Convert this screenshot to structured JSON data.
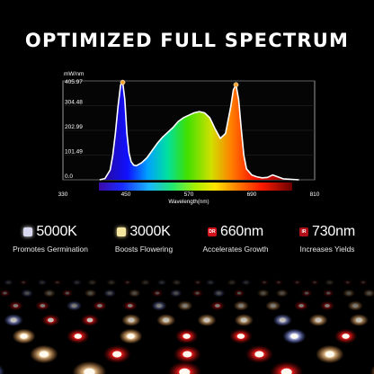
{
  "title": "OPTIMIZED FULL SPECTRUM",
  "chart_data": {
    "type": "line",
    "ylabel": "mW/nm",
    "xlabel": "Wavelength(nm)",
    "y_ticks": [
      "405.97",
      "304.48",
      "202.99",
      "101.49",
      "0.0"
    ],
    "x_ticks": [
      "330",
      "450",
      "570",
      "690",
      "810"
    ],
    "xlim": [
      330,
      810
    ],
    "ylim": [
      0,
      405.97
    ],
    "series": [
      {
        "x": [
          400,
          410,
          420,
          425,
          430,
          435,
          440,
          444,
          448,
          452,
          456,
          460,
          465,
          470,
          480,
          490,
          500,
          510,
          520,
          530,
          540,
          550,
          560,
          570,
          580,
          590,
          600,
          610,
          620,
          630,
          640,
          650,
          655,
          660,
          665,
          670,
          675,
          680,
          690,
          700,
          710,
          720,
          730,
          740,
          750,
          780
        ],
        "y": [
          0,
          5,
          40,
          100,
          190,
          300,
          390,
          400,
          330,
          190,
          110,
          75,
          60,
          58,
          70,
          90,
          120,
          150,
          175,
          195,
          215,
          240,
          255,
          265,
          275,
          280,
          275,
          255,
          210,
          170,
          190,
          300,
          370,
          390,
          330,
          210,
          100,
          45,
          20,
          12,
          8,
          10,
          20,
          12,
          4,
          0
        ]
      }
    ],
    "peak_markers": [
      {
        "x": 444,
        "y": 400
      },
      {
        "x": 660,
        "y": 390
      }
    ]
  },
  "features": [
    {
      "value": "5000K",
      "caption": "Promotes Germination",
      "badge": "",
      "badge_color": "#d8d8f0",
      "value_color": "#ffffff"
    },
    {
      "value": "3000K",
      "caption": "Boosts Flowering",
      "badge": "",
      "badge_color": "#f5e7a0",
      "value_color": "#ffffff"
    },
    {
      "value": "660nm",
      "caption": "Accelerates Growth",
      "badge": "DR",
      "badge_color": "#d0121b",
      "value_color": "#ffffff"
    },
    {
      "value": "730nm",
      "caption": "Increases Yields",
      "badge": "IR",
      "badge_color": "#b20e17",
      "value_color": "#ffffff"
    }
  ],
  "colors": {
    "background": "#000000",
    "curve": "#ffffff",
    "peak": "#f7a531"
  }
}
